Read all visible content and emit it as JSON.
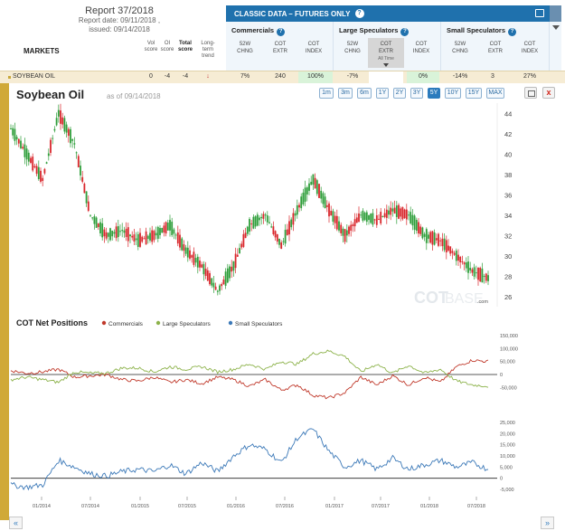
{
  "report": {
    "title": "Report 37/2018",
    "report_date": "Report date: 09/11/2018 ,",
    "issued": "issued: 09/14/2018"
  },
  "markets_label": "MARKETS",
  "score_headers": {
    "vol": [
      "Vol",
      "score"
    ],
    "oi": [
      "OI",
      "score"
    ],
    "total": [
      "Total",
      "score"
    ],
    "long": [
      "Long-",
      "term",
      "trend"
    ]
  },
  "classic": {
    "title": "CLASSIC DATA – FUTURES ONLY",
    "help": "?"
  },
  "groups": [
    {
      "title": "Commercials",
      "cols": [
        [
          "52W",
          "CHNG"
        ],
        [
          "COT",
          "EXTR"
        ],
        [
          "COT",
          "INDEX"
        ]
      ]
    },
    {
      "title": "Large Speculators",
      "cols": [
        [
          "52W",
          "CHNG"
        ],
        [
          "COT",
          "EXTR"
        ],
        [
          "COT",
          "INDEX"
        ]
      ],
      "alltime": "All Time"
    },
    {
      "title": "Small Speculators",
      "cols": [
        [
          "52W",
          "CHNG"
        ],
        [
          "COT",
          "EXTR"
        ],
        [
          "COT",
          "INDEX"
        ]
      ]
    }
  ],
  "row": {
    "name": "SOYBEAN OIL",
    "vol": "0",
    "oi": "-4",
    "total": "-4",
    "trend_arrow": "↓",
    "comm": [
      "7%",
      "240",
      "100%"
    ],
    "large": [
      "-7%",
      "",
      "0%"
    ],
    "small": [
      "-14%",
      "3",
      "27%"
    ]
  },
  "chart": {
    "title": "Soybean Oil",
    "asof": "as of 09/14/2018",
    "ranges": [
      "1m",
      "3m",
      "6m",
      "1Y",
      "2Y",
      "3Y",
      "5Y",
      "10Y",
      "15Y",
      "MAX"
    ],
    "active_range": "5Y",
    "close_label": "x"
  },
  "cot_legend": {
    "title": "COT Net Positions",
    "items": [
      "Commercials",
      "Large Speculators",
      "Small Speculators"
    ]
  },
  "watermark": {
    "a": "COT",
    "b": "BASE",
    "c": ".com"
  },
  "nav": {
    "prev": "«",
    "next": "»"
  },
  "colors": {
    "commercials": "#c0392b",
    "large": "#8cb24a",
    "small": "#3c79b8",
    "candle_up": "#2e9e3a",
    "candle_down": "#d9262b",
    "accent": "#1f71ad"
  },
  "chart_data": [
    {
      "type": "line",
      "title": "Soybean Oil",
      "ylim": [
        25,
        45
      ],
      "yticks": [
        26,
        28,
        30,
        32,
        34,
        36,
        38,
        40,
        42,
        44
      ],
      "x": [
        "2013-10",
        "2013-12",
        "2014-02",
        "2014-04",
        "2014-06",
        "2014-08",
        "2014-10",
        "2014-12",
        "2015-02",
        "2015-04",
        "2015-06",
        "2015-08",
        "2015-10",
        "2015-12",
        "2016-02",
        "2016-04",
        "2016-06",
        "2016-08",
        "2016-10",
        "2016-12",
        "2017-02",
        "2017-04",
        "2017-06",
        "2017-08",
        "2017-10",
        "2017-12",
        "2018-02",
        "2018-04",
        "2018-06",
        "2018-08",
        "2018-09"
      ],
      "series": [
        {
          "values": [
            42.5,
            40,
            37.5,
            44,
            41,
            34,
            32,
            32.5,
            31.5,
            32,
            33,
            30.5,
            29,
            26.5,
            29,
            33,
            34,
            31,
            34.5,
            37.5,
            34.5,
            32,
            34,
            33.5,
            34.5,
            34,
            32,
            31.5,
            30,
            28.5,
            27.8
          ]
        }
      ]
    },
    {
      "type": "line",
      "title": "COT Net Positions",
      "ylim": [
        -80000,
        160000
      ],
      "yticks": [
        -50000,
        0,
        50000,
        100000,
        150000
      ],
      "xticks": [
        "01/2014",
        "07/2014",
        "01/2015",
        "07/2015",
        "01/2016",
        "07/2016",
        "01/2017",
        "07/2017",
        "01/2018",
        "07/2018"
      ],
      "x": [
        "2013-10",
        "2013-12",
        "2014-02",
        "2014-04",
        "2014-06",
        "2014-08",
        "2014-10",
        "2014-12",
        "2015-02",
        "2015-04",
        "2015-06",
        "2015-08",
        "2015-10",
        "2015-12",
        "2016-02",
        "2016-04",
        "2016-06",
        "2016-08",
        "2016-10",
        "2016-12",
        "2017-02",
        "2017-04",
        "2017-06",
        "2017-08",
        "2017-10",
        "2017-12",
        "2018-02",
        "2018-04",
        "2018-06",
        "2018-08",
        "2018-09"
      ],
      "series": [
        {
          "name": "Commercials",
          "values": [
            15000,
            5000,
            10000,
            20000,
            -10000,
            -5000,
            0,
            -20000,
            -25000,
            -10000,
            -30000,
            -20000,
            -35000,
            -10000,
            -20000,
            -45000,
            -20000,
            -60000,
            -40000,
            -80000,
            -90000,
            -70000,
            -10000,
            -40000,
            -5000,
            -40000,
            -10000,
            -30000,
            30000,
            55000,
            50000
          ]
        },
        {
          "name": "Large Speculators",
          "values": [
            -20000,
            -10000,
            -20000,
            -30000,
            10000,
            5000,
            5000,
            25000,
            25000,
            10000,
            30000,
            20000,
            30000,
            10000,
            20000,
            40000,
            20000,
            50000,
            40000,
            80000,
            90000,
            70000,
            10000,
            40000,
            5000,
            35000,
            5000,
            20000,
            -25000,
            -40000,
            -45000
          ]
        }
      ]
    },
    {
      "type": "line",
      "title": "Small Speculators",
      "ylim": [
        -7000,
        27000
      ],
      "yticks": [
        -5000,
        0,
        5000,
        10000,
        15000,
        20000,
        25000
      ],
      "x": [
        "2013-10",
        "2013-12",
        "2014-02",
        "2014-04",
        "2014-06",
        "2014-08",
        "2014-10",
        "2014-12",
        "2015-02",
        "2015-04",
        "2015-06",
        "2015-08",
        "2015-10",
        "2015-12",
        "2016-02",
        "2016-04",
        "2016-06",
        "2016-08",
        "2016-10",
        "2016-12",
        "2017-02",
        "2017-04",
        "2017-06",
        "2017-08",
        "2017-10",
        "2017-12",
        "2018-02",
        "2018-04",
        "2018-06",
        "2018-08",
        "2018-09"
      ],
      "series": [
        {
          "name": "Small Speculators",
          "values": [
            -3000,
            -4000,
            -3000,
            8000,
            5000,
            2000,
            1000,
            3000,
            4000,
            3000,
            6000,
            2000,
            7000,
            3000,
            10000,
            15000,
            13000,
            7000,
            18000,
            22000,
            12000,
            5000,
            8000,
            4000,
            9000,
            4000,
            6000,
            8000,
            5000,
            7000,
            4000
          ]
        }
      ]
    }
  ]
}
